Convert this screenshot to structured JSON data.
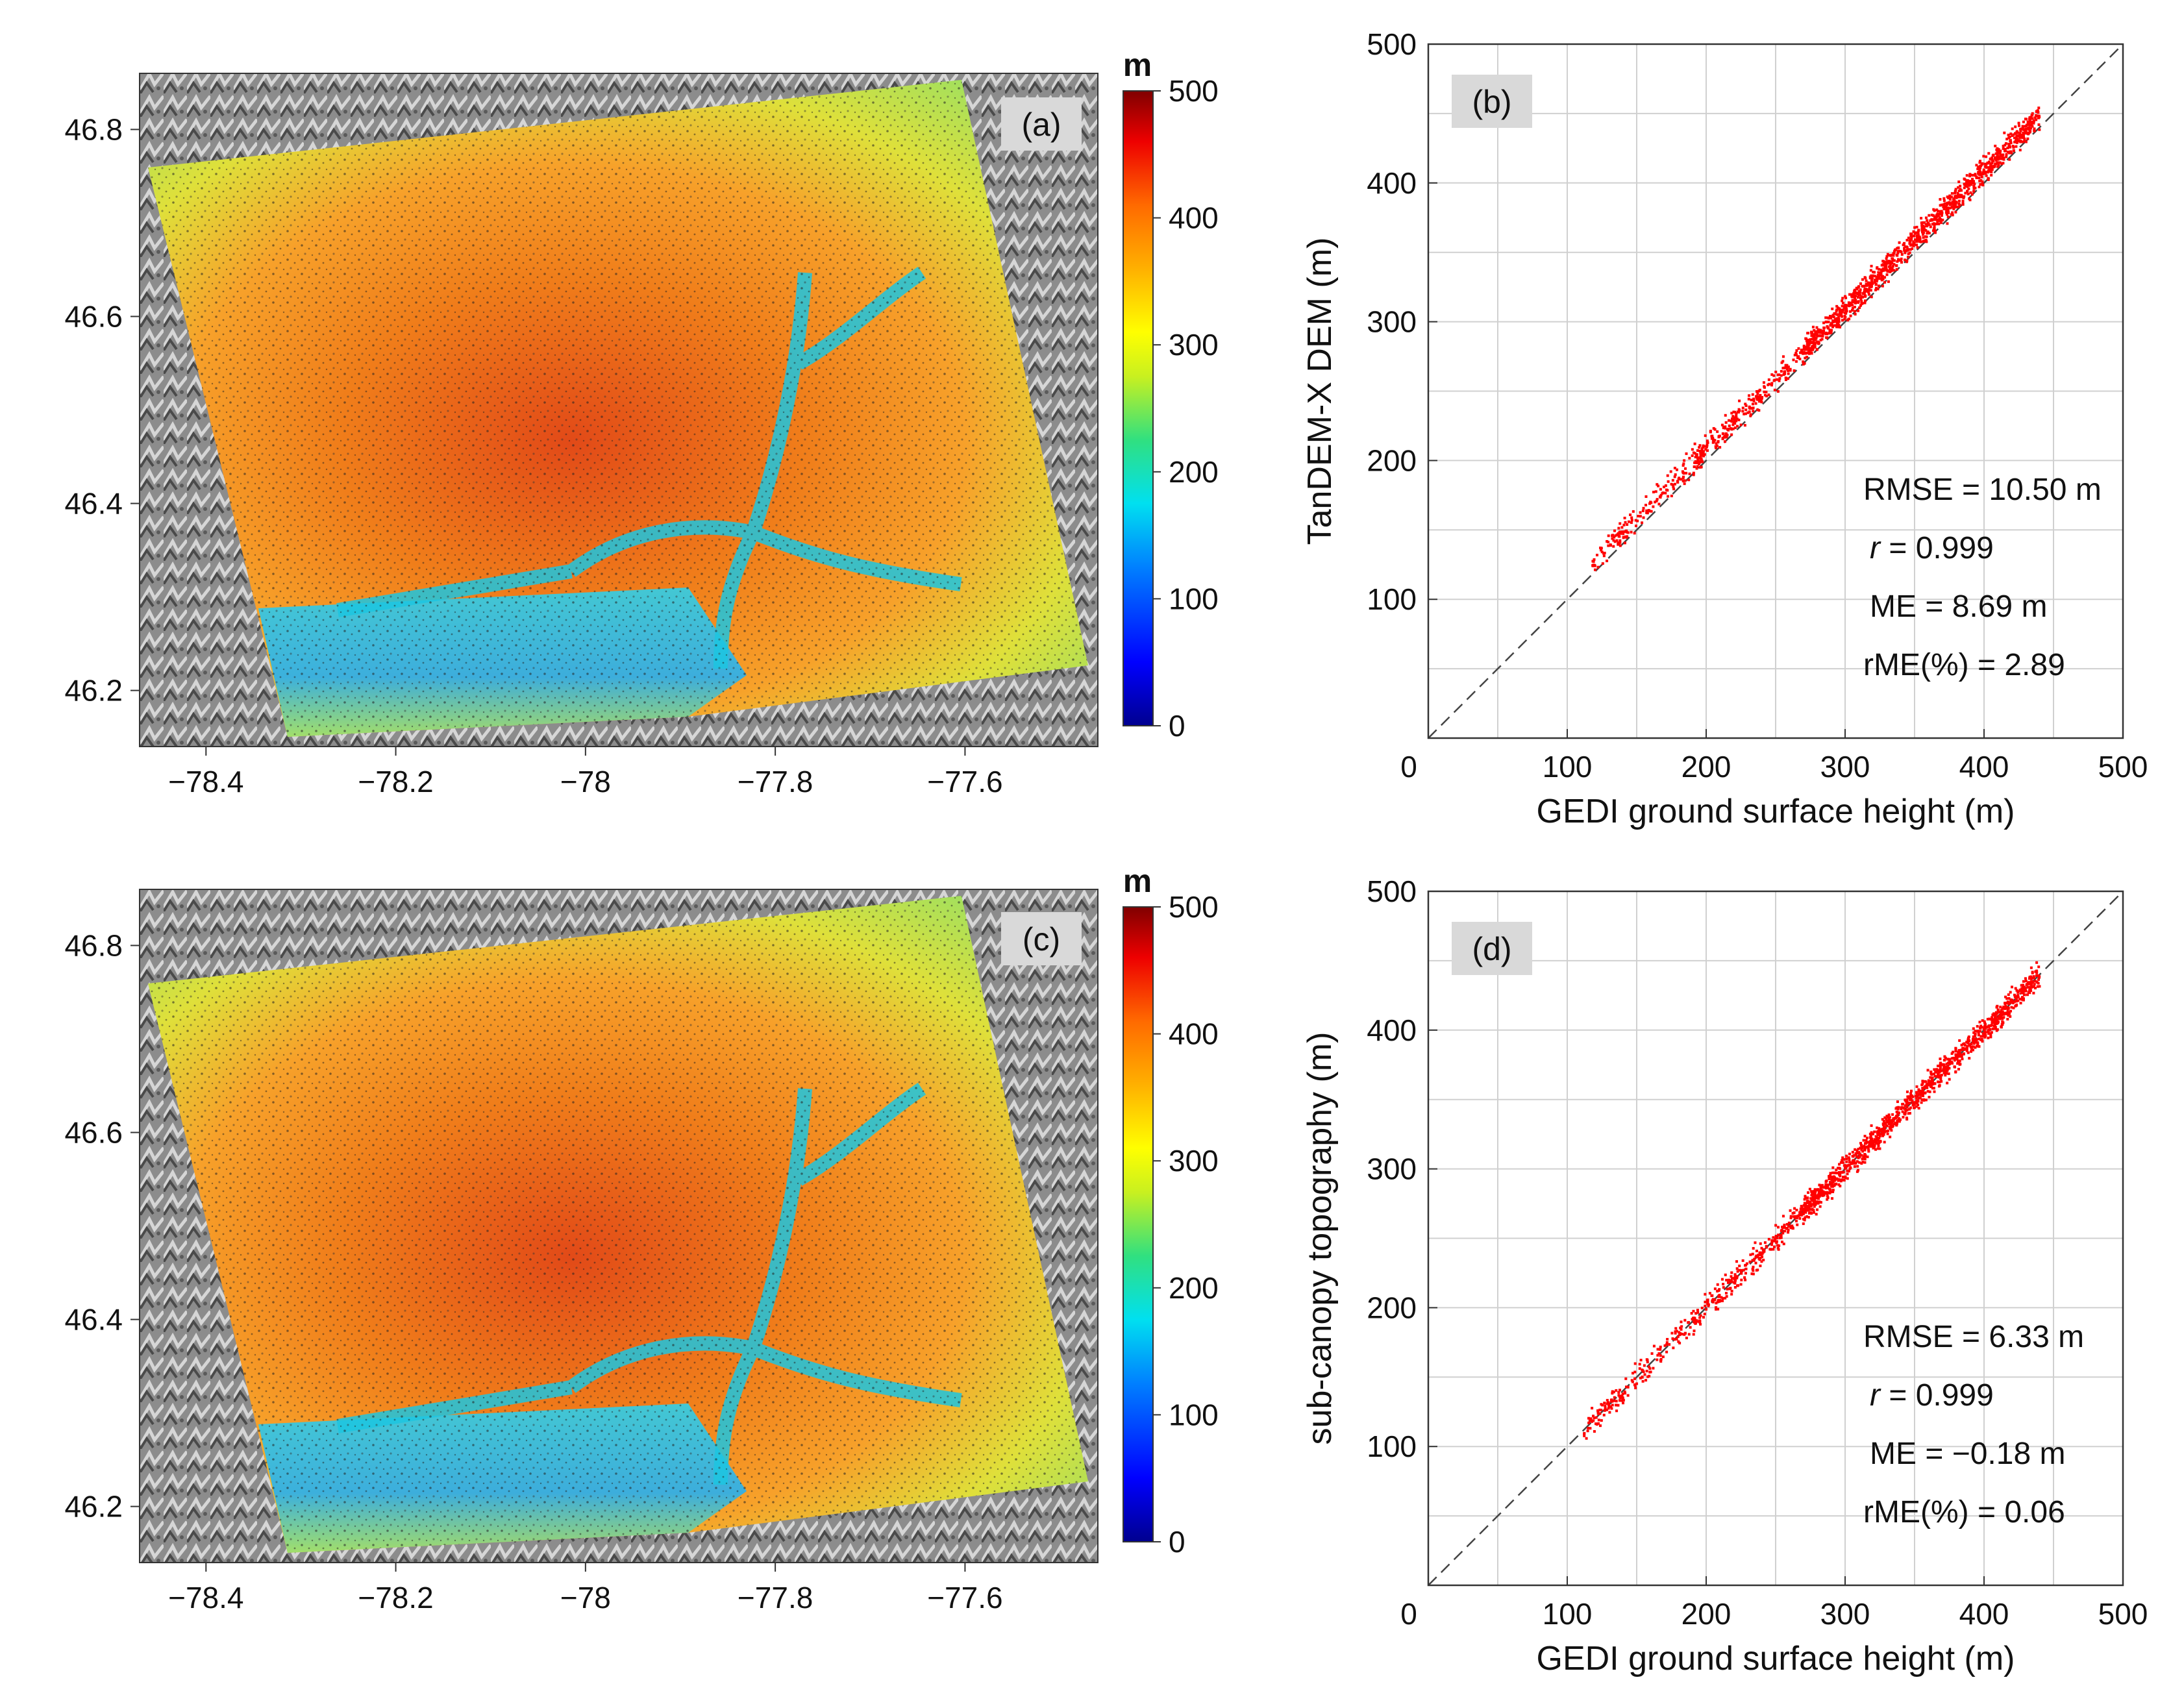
{
  "colors": {
    "colormap": [
      "#00008f",
      "#0000ff",
      "#0080ff",
      "#00e0f0",
      "#30e080",
      "#c8f020",
      "#ffff00",
      "#ffb000",
      "#ff6a00",
      "#ee0000",
      "#800000"
    ],
    "scatter_point": "#ff0000",
    "panel_tag_bg": "#d9d9d9",
    "grid": "#d0d0d0",
    "hillshade": "#8a8a8a"
  },
  "panels": {
    "a": {
      "tag": "(a)",
      "unit": "m"
    },
    "b": {
      "tag": "(b)"
    },
    "c": {
      "tag": "(c)",
      "unit": "m"
    },
    "d": {
      "tag": "(d)"
    }
  },
  "chart_data": [
    {
      "id": "a",
      "type": "heatmap",
      "description_kind": "elevation map",
      "x_ticks": [
        "−78.4",
        "−78.2",
        "−78",
        "−77.8",
        "−77.6"
      ],
      "x_tick_values": [
        -78.4,
        -78.2,
        -78.0,
        -77.8,
        -77.6
      ],
      "y_ticks": [
        "46.2",
        "46.4",
        "46.6",
        "46.8"
      ],
      "y_tick_values": [
        46.2,
        46.4,
        46.6,
        46.8
      ],
      "xlim": [
        -78.47,
        -77.46
      ],
      "ylim": [
        46.14,
        46.86
      ],
      "colorbar": {
        "unit": "m",
        "range": [
          0,
          500
        ],
        "ticks": [
          "0",
          "100",
          "200",
          "300",
          "400",
          "500"
        ]
      }
    },
    {
      "id": "b",
      "type": "scatter",
      "xlabel": "GEDI ground surface height (m)",
      "ylabel": "TanDEM-X DEM (m)",
      "xlim": [
        0,
        500
      ],
      "ylim": [
        0,
        500
      ],
      "x_ticks": [
        "0",
        "100",
        "200",
        "300",
        "400",
        "500"
      ],
      "y_ticks": [
        "100",
        "200",
        "300",
        "400",
        "500"
      ],
      "reference_line": "1:1",
      "stats": {
        "rmse": "RMSE = 10.50 m",
        "r_symbol": "r",
        "r_value": " = 0.999",
        "me": "ME = 8.69 m",
        "rme": "rME(%) = 2.89"
      },
      "trend": {
        "bias_m": 8.7,
        "x_range": [
          118,
          440
        ],
        "n_points": 1500
      }
    },
    {
      "id": "c",
      "type": "heatmap",
      "description_kind": "elevation map",
      "x_ticks": [
        "−78.4",
        "−78.2",
        "−78",
        "−77.8",
        "−77.6"
      ],
      "x_tick_values": [
        -78.4,
        -78.2,
        -78.0,
        -77.8,
        -77.6
      ],
      "y_ticks": [
        "46.2",
        "46.4",
        "46.6",
        "46.8"
      ],
      "y_tick_values": [
        46.2,
        46.4,
        46.6,
        46.8
      ],
      "xlim": [
        -78.47,
        -77.46
      ],
      "ylim": [
        46.14,
        46.86
      ],
      "colorbar": {
        "unit": "m",
        "range": [
          0,
          500
        ],
        "ticks": [
          "0",
          "100",
          "200",
          "300",
          "400",
          "500"
        ]
      }
    },
    {
      "id": "d",
      "type": "scatter",
      "xlabel": "GEDI ground surface height (m)",
      "ylabel": "sub-canopy topography (m)",
      "xlim": [
        0,
        500
      ],
      "ylim": [
        0,
        500
      ],
      "x_ticks": [
        "0",
        "100",
        "200",
        "300",
        "400",
        "500"
      ],
      "y_ticks": [
        "100",
        "200",
        "300",
        "400",
        "500"
      ],
      "reference_line": "1:1",
      "stats": {
        "rmse": "RMSE = 6.33 m",
        "r_symbol": "r",
        "r_value": " = 0.999",
        "me": "ME = −0.18 m",
        "rme": "rME(%) = 0.06"
      },
      "trend": {
        "bias_m": -0.2,
        "x_range": [
          112,
          440
        ],
        "n_points": 1500
      }
    }
  ]
}
